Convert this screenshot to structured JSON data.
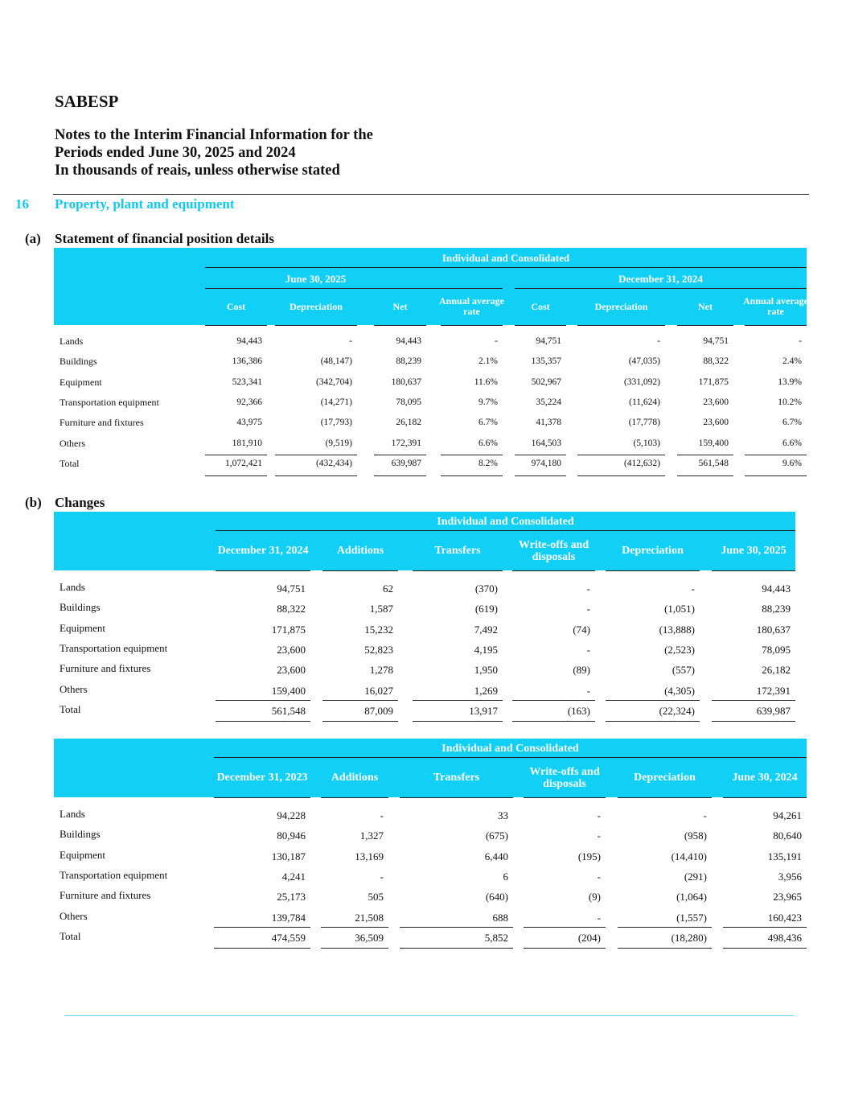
{
  "company": "SABESP",
  "title_lines": [
    "Notes to the Interim Financial Information for the",
    "Periods ended June 30, 2025 and 2024",
    "In thousands of reais, unless otherwise stated"
  ],
  "section": {
    "number": "16",
    "title": "Property, plant and equipment"
  },
  "part_a": {
    "marker": "(a)",
    "title": "Statement of financial position details",
    "band_title": "Individual and Consolidated",
    "periods": [
      "June 30, 2025",
      "December 31, 2024"
    ],
    "columns": [
      "Cost",
      "Depreciation",
      "Net",
      "Annual average rate",
      "Cost",
      "Depreciation",
      "Net",
      "Annual average rate"
    ],
    "rows": [
      {
        "label": "Lands",
        "values": [
          "94,443",
          "-",
          "94,443",
          "-",
          "94,751",
          "-",
          "94,751",
          "-"
        ]
      },
      {
        "label": "Buildings",
        "values": [
          "136,386",
          "(48,147)",
          "88,239",
          "2.1%",
          "135,357",
          "(47,035)",
          "88,322",
          "2.4%"
        ]
      },
      {
        "label": "Equipment",
        "values": [
          "523,341",
          "(342,704)",
          "180,637",
          "11.6%",
          "502,967",
          "(331,092)",
          "171,875",
          "13.9%"
        ]
      },
      {
        "label": "Transportation equipment",
        "values": [
          "92,366",
          "(14,271)",
          "78,095",
          "9.7%",
          "35,224",
          "(11,624)",
          "23,600",
          "10.2%"
        ]
      },
      {
        "label": "Furniture and fixtures",
        "values": [
          "43,975",
          "(17,793)",
          "26,182",
          "6.7%",
          "41,378",
          "(17,778)",
          "23,600",
          "6.7%"
        ]
      },
      {
        "label": "Others",
        "values": [
          "181,910",
          "(9,519)",
          "172,391",
          "6.6%",
          "164,503",
          "(5,103)",
          "159,400",
          "6.6%"
        ]
      },
      {
        "label": "Total",
        "values": [
          "1,072,421",
          "(432,434)",
          "639,987",
          "8.2%",
          "974,180",
          "(412,632)",
          "561,548",
          "9.6%"
        ]
      }
    ]
  },
  "part_b": {
    "marker": "(b)",
    "title": "Changes",
    "tables": [
      {
        "band_title": "Individual and Consolidated",
        "columns": [
          "December 31, 2024",
          "Additions",
          "Transfers",
          "Write-offs and disposals",
          "Depreciation",
          "June 30, 2025"
        ],
        "rows": [
          {
            "label": "Lands",
            "values": [
              "94,751",
              "62",
              "(370)",
              "-",
              "-",
              "94,443"
            ]
          },
          {
            "label": "Buildings",
            "values": [
              "88,322",
              "1,587",
              "(619)",
              "-",
              "(1,051)",
              "88,239"
            ]
          },
          {
            "label": "Equipment",
            "values": [
              "171,875",
              "15,232",
              "7,492",
              "(74)",
              "(13,888)",
              "180,637"
            ]
          },
          {
            "label": "Transportation equipment",
            "values": [
              "23,600",
              "52,823",
              "4,195",
              "-",
              "(2,523)",
              "78,095"
            ]
          },
          {
            "label": "Furniture and fixtures",
            "values": [
              "23,600",
              "1,278",
              "1,950",
              "(89)",
              "(557)",
              "26,182"
            ]
          },
          {
            "label": "Others",
            "values": [
              "159,400",
              "16,027",
              "1,269",
              "-",
              "(4,305)",
              "172,391"
            ]
          },
          {
            "label": "Total",
            "values": [
              "561,548",
              "87,009",
              "13,917",
              "(163)",
              "(22,324)",
              "639,987"
            ]
          }
        ]
      },
      {
        "band_title": "Individual and Consolidated",
        "columns": [
          "December 31, 2023",
          "Additions",
          "Transfers",
          "Write-offs and disposals",
          "Depreciation",
          "June 30, 2024"
        ],
        "rows": [
          {
            "label": "Lands",
            "values": [
              "94,228",
              "-",
              "33",
              "-",
              "-",
              "94,261"
            ]
          },
          {
            "label": "Buildings",
            "values": [
              "80,946",
              "1,327",
              "(675)",
              "-",
              "(958)",
              "80,640"
            ]
          },
          {
            "label": "Equipment",
            "values": [
              "130,187",
              "13,169",
              "6,440",
              "(195)",
              "(14,410)",
              "135,191"
            ]
          },
          {
            "label": "Transportation equipment",
            "values": [
              "4,241",
              "-",
              "6",
              "-",
              "(291)",
              "3,956"
            ]
          },
          {
            "label": "Furniture and fixtures",
            "values": [
              "25,173",
              "505",
              "(640)",
              "(9)",
              "(1,064)",
              "23,965"
            ]
          },
          {
            "label": "Others",
            "values": [
              "139,784",
              "21,508",
              "688",
              "-",
              "(1,557)",
              "160,423"
            ]
          },
          {
            "label": "Total",
            "values": [
              "474,559",
              "36,509",
              "5,852",
              "(204)",
              "(18,280)",
              "498,436"
            ]
          }
        ]
      }
    ]
  },
  "colors": {
    "accent": "#12cff5",
    "section": "#12c8f0"
  }
}
